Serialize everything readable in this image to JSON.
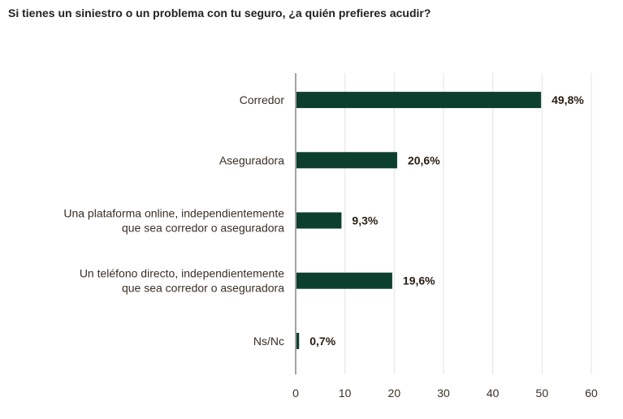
{
  "chart_data": {
    "type": "bar",
    "orientation": "horizontal",
    "title": "Si tienes un siniestro o un problema con tu seguro, ¿a quién prefieres acudir?",
    "categories": [
      [
        "Corredor"
      ],
      [
        "Aseguradora"
      ],
      [
        "Una plataforma online, independientemente",
        "que sea corredor o aseguradora"
      ],
      [
        "Un teléfono directo, independientemente",
        "que sea corredor o aseguradora"
      ],
      [
        "Ns/Nc"
      ]
    ],
    "values": [
      49.8,
      20.6,
      9.3,
      19.6,
      0.7
    ],
    "data_labels": [
      "49,8%",
      "20,6%",
      "9,3%",
      "19,6%",
      "0,7%"
    ],
    "xlim": [
      0,
      60
    ],
    "xticks": [
      0,
      10,
      20,
      30,
      40,
      50,
      60
    ],
    "grid": true,
    "bar_color": "#0d3f2e"
  }
}
